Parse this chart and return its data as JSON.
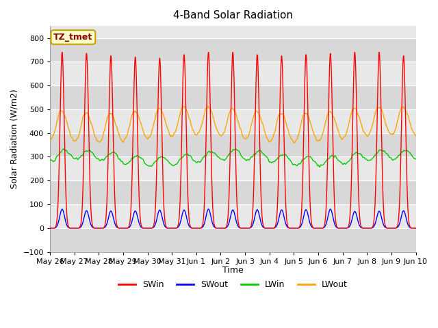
{
  "title": "4-Band Solar Radiation",
  "ylabel": "Solar Radiation (W/m2)",
  "xlabel": "Time",
  "annotation_text": "TZ_tmet",
  "annotation_color": "#8B0000",
  "annotation_bg": "#FFFFCC",
  "annotation_border": "#C8A000",
  "ylim": [
    -100,
    850
  ],
  "yticks": [
    -100,
    0,
    100,
    200,
    300,
    400,
    500,
    600,
    700,
    800
  ],
  "x_labels": [
    "May 26",
    "May 27",
    "May 28",
    "May 29",
    "May 30",
    "May 31",
    "Jun 1",
    "Jun 2",
    "Jun 3",
    "Jun 4",
    "Jun 5",
    "Jun 6",
    "Jun 7",
    "Jun 8",
    "Jun 9",
    "Jun 10"
  ],
  "num_days": 15,
  "colors": {
    "SWin": "#FF0000",
    "SWout": "#0000FF",
    "LWin": "#00CC00",
    "LWout": "#FFA500"
  },
  "bg_color": "#FFFFFF",
  "plot_bg_color": "#E8E8E8",
  "grid_color": "#FFFFFF",
  "linewidth": 1.0
}
